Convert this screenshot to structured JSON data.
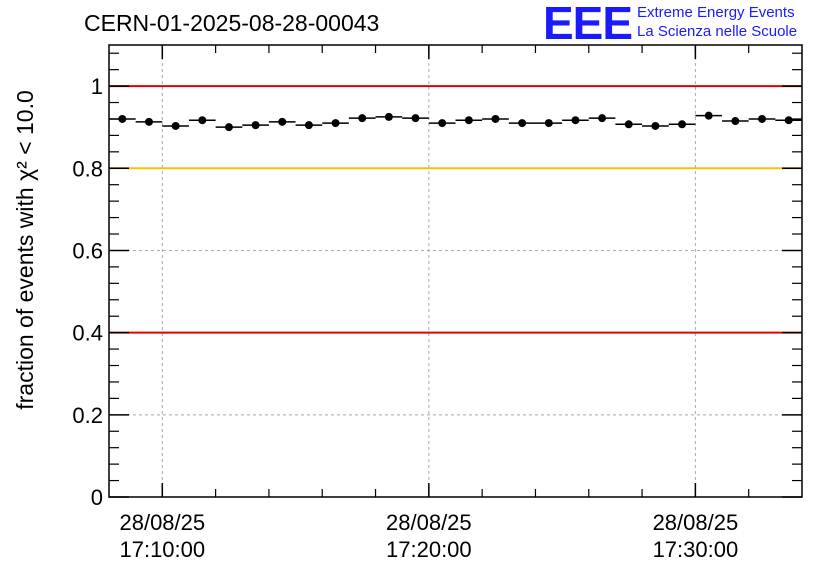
{
  "title": "CERN-01-2025-08-28-00043",
  "logo": {
    "mark": "EEE",
    "line1": "Extreme Energy Events",
    "line2": "La Scienza nelle Scuole",
    "color": "#1a1aff"
  },
  "chart_data": {
    "type": "scatter",
    "ylabel": "fraction of events with χ² < 10.0",
    "ylim": [
      0,
      1.1
    ],
    "yticks": [
      "0",
      "0.2",
      "0.4",
      "0.6",
      "0.8",
      "1"
    ],
    "xlim": [
      "2025-08-28T17:08:00",
      "2025-08-28T17:34:00"
    ],
    "xticks": [
      {
        "date": "28/08/25",
        "time": "17:10:00"
      },
      {
        "date": "28/08/25",
        "time": "17:20:00"
      },
      {
        "date": "28/08/25",
        "time": "17:30:00"
      }
    ],
    "grid": true,
    "reference_lines": [
      {
        "y": 1.0,
        "color": "#e00000"
      },
      {
        "y": 0.8,
        "color": "#ffc000"
      },
      {
        "y": 0.4,
        "color": "#e00000"
      }
    ],
    "series": [
      {
        "color": "#000000",
        "points": [
          {
            "t": "17:08:30",
            "y": 0.92
          },
          {
            "t": "17:09:30",
            "y": 0.913
          },
          {
            "t": "17:10:30",
            "y": 0.903
          },
          {
            "t": "17:11:30",
            "y": 0.917
          },
          {
            "t": "17:12:30",
            "y": 0.9
          },
          {
            "t": "17:13:30",
            "y": 0.905
          },
          {
            "t": "17:14:30",
            "y": 0.913
          },
          {
            "t": "17:15:30",
            "y": 0.905
          },
          {
            "t": "17:16:30",
            "y": 0.91
          },
          {
            "t": "17:17:30",
            "y": 0.922
          },
          {
            "t": "17:18:30",
            "y": 0.925
          },
          {
            "t": "17:19:30",
            "y": 0.922
          },
          {
            "t": "17:20:30",
            "y": 0.91
          },
          {
            "t": "17:21:30",
            "y": 0.917
          },
          {
            "t": "17:22:30",
            "y": 0.92
          },
          {
            "t": "17:23:30",
            "y": 0.91
          },
          {
            "t": "17:24:30",
            "y": 0.91
          },
          {
            "t": "17:25:30",
            "y": 0.917
          },
          {
            "t": "17:26:30",
            "y": 0.922
          },
          {
            "t": "17:27:30",
            "y": 0.907
          },
          {
            "t": "17:28:30",
            "y": 0.903
          },
          {
            "t": "17:29:30",
            "y": 0.907
          },
          {
            "t": "17:30:30",
            "y": 0.928
          },
          {
            "t": "17:31:30",
            "y": 0.915
          },
          {
            "t": "17:32:30",
            "y": 0.92
          },
          {
            "t": "17:33:30",
            "y": 0.917
          }
        ]
      }
    ]
  }
}
